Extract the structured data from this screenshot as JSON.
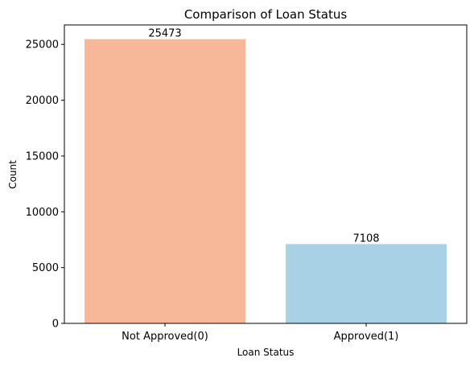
{
  "chart_data": {
    "type": "bar",
    "title": "Comparison of Loan Status",
    "xlabel": "Loan Status",
    "ylabel": "Count",
    "categories": [
      "Not Approved(0)",
      "Approved(1)"
    ],
    "values": [
      25473,
      7108
    ],
    "data_labels": [
      "25473",
      "7108"
    ],
    "colors": [
      "#f7b899",
      "#a8d1e6"
    ],
    "ylim": [
      0,
      26746.65
    ],
    "yticks": [
      0,
      5000,
      10000,
      15000,
      20000,
      25000
    ],
    "ytick_labels": [
      "0",
      "5000",
      "10000",
      "15000",
      "20000",
      "25000"
    ],
    "grid": false,
    "legend": "none"
  }
}
